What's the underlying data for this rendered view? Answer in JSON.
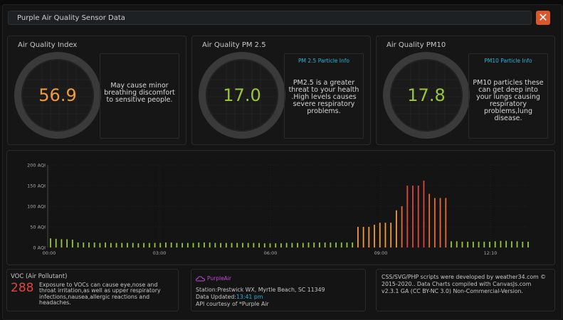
{
  "window": {
    "title": "Purple Air Quality Sensor Data",
    "close_label": "✕"
  },
  "panels": [
    {
      "title": "Air Quality Index",
      "value": "56.9",
      "value_color": "#f39a3b",
      "info_label": "",
      "description": "May cause minor breathing discomfort to sensitive people."
    },
    {
      "title": "Air Quality PM 2.5",
      "value": "17.0",
      "value_color": "#9ac63a",
      "info_label": "PM 2.5 Particle Info",
      "description": "PM2.5 is a greater threat to your health .High levels causes severe respiratory problems."
    },
    {
      "title": "Air Quality PM10",
      "value": "17.8",
      "value_color": "#9ac63a",
      "info_label": "PM10 Particle Info",
      "description": "PM10 particles these can get deep into your lungs causing respiratory problems,lung disease."
    }
  ],
  "chart_data": {
    "type": "bar",
    "x_tick_labels": [
      "00:00",
      "03:00",
      "06:00",
      "09:00",
      "12:10"
    ],
    "y_tick_labels": [
      "0 AQI",
      "50 AQI",
      "100 AQI",
      "150 AQI",
      "200 AQI"
    ],
    "ylim": [
      0,
      200
    ],
    "grid": true,
    "values": [
      22,
      21,
      20,
      20,
      19,
      12,
      12,
      12,
      12,
      11,
      12,
      11,
      11,
      11,
      11,
      11,
      10,
      11,
      11,
      11,
      11,
      12,
      12,
      11,
      11,
      11,
      11,
      12,
      12,
      12,
      11,
      11,
      11,
      11,
      11,
      11,
      11,
      11,
      11,
      10,
      10,
      10,
      10,
      11,
      11,
      11,
      11,
      12,
      12,
      12,
      12,
      12,
      12,
      12,
      12,
      12,
      50,
      50,
      50,
      55,
      60,
      60,
      60,
      90,
      100,
      150,
      150,
      150,
      162,
      130,
      120,
      120,
      120,
      15,
      15,
      14,
      14,
      14,
      14,
      14,
      14,
      15,
      16,
      16,
      15,
      15,
      14,
      14
    ],
    "colors": {
      "low": "#9ac63a",
      "moderate": "#f39a3b",
      "high": "#e0463d"
    }
  },
  "voc": {
    "title": "VOC (Air Pollutant)",
    "value": "288",
    "description": "Exposure to VOCs can cause eye,nose and throat irritation,as well as upper respiratory infections,nausea,allergic reactions and headaches."
  },
  "station": {
    "logo_text": "PurpleAir",
    "station_line": "Station:Prestwick WX, Myrtle Beach, SC 11349",
    "updated_label": "Data Updated:",
    "updated_time": "13:41 pm",
    "api_line": "API courtesy of *Purple Air"
  },
  "credits": {
    "text": "CSS/SVG/PHP scripts were developed by weather34.com © 2015-2020.. Data Charts compiled with CanvasJs.com v2.3.1 GA (CC BY-NC 3.0) Non-Commercial-Version."
  }
}
